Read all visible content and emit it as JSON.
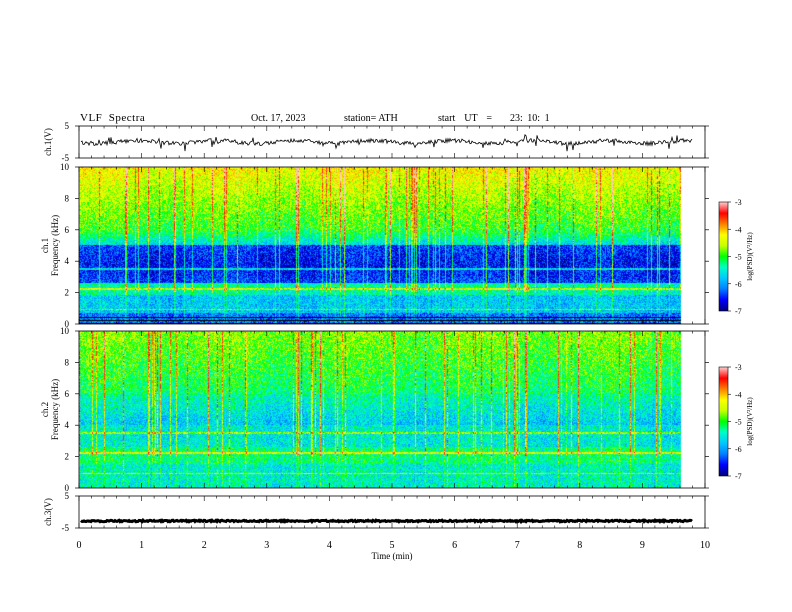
{
  "header": {
    "title": "VLF  Spectra",
    "date": "Oct. 17, 2023",
    "station": "station= ATH",
    "start_ut": "start  UT  =    23: 10: 1"
  },
  "chart_data": {
    "type": "heatmap",
    "title": "VLF  Spectra",
    "xlabel": "Time  (min)",
    "xlim": [
      0,
      10
    ],
    "x_ticks": [
      "0",
      "1",
      "2",
      "3",
      "4",
      "5",
      "6",
      "7",
      "8",
      "9",
      "10"
    ],
    "data_end_min": 9.8,
    "panels": [
      {
        "id": "ch1_waveform",
        "type": "line",
        "ylabel": "ch.1(V)",
        "ylim": [
          -5,
          5
        ],
        "y_ticks": [
          "5",
          "-5"
        ],
        "baseline_value": 0.0,
        "line_color": "#000000"
      },
      {
        "id": "ch1_spectrogram",
        "type": "heatmap",
        "ylabel_top": "ch.1",
        "ylabel": "Frequency  (kHz)",
        "ylim": [
          0,
          10
        ],
        "y_ticks": [
          "0",
          "2",
          "4",
          "6",
          "8",
          "10"
        ],
        "colorbar": {
          "label": "log(PSD)(V²/Hz)",
          "ticks": [
            "-3",
            "-4",
            "-5",
            "-6",
            "-7"
          ],
          "range": [
            -7,
            -3
          ]
        }
      },
      {
        "id": "ch2_spectrogram",
        "type": "heatmap",
        "ylabel_top": "ch.2",
        "ylabel": "Frequency  (kHz)",
        "ylim": [
          0,
          10
        ],
        "y_ticks": [
          "0",
          "2",
          "4",
          "6",
          "8",
          "10"
        ],
        "colorbar": {
          "label": "log(PSD)(V²/Hz)",
          "ticks": [
            "-3",
            "-4",
            "-5",
            "-6",
            "-7"
          ],
          "range": [
            -7,
            -3
          ]
        }
      },
      {
        "id": "ch3_waveform",
        "type": "line",
        "ylabel": "ch.3(V)",
        "ylim": [
          -5,
          5
        ],
        "y_ticks": [
          "5",
          "-5"
        ],
        "baseline_value": -2.8,
        "line_color": "#000000"
      }
    ],
    "colormap": [
      "#000080",
      "#0000ff",
      "#0080ff",
      "#00c8ff",
      "#00ffc8",
      "#00ff00",
      "#c8ff00",
      "#ffff00",
      "#ff8000",
      "#ff0000",
      "#ffc8c8"
    ]
  }
}
